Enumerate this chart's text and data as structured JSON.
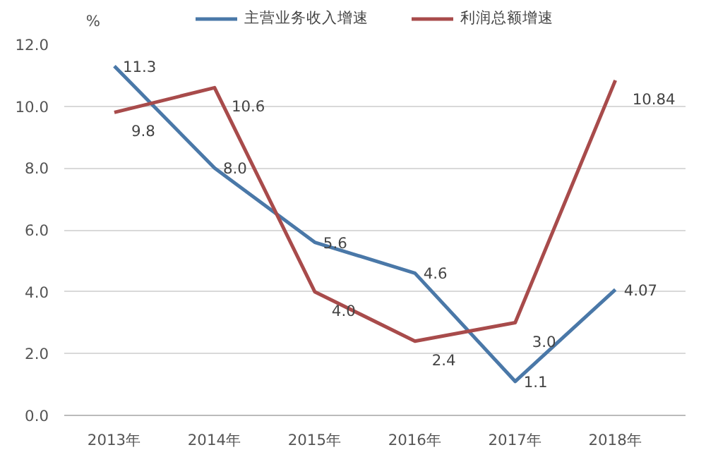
{
  "chart_data": {
    "type": "line",
    "categories": [
      "2013年",
      "2014年",
      "2015年",
      "2016年",
      "2017年",
      "2018年"
    ],
    "series": [
      {
        "name": "主营业务收入增速",
        "color": "#4a78a8",
        "values": [
          11.3,
          8.0,
          5.6,
          4.6,
          1.1,
          4.07
        ],
        "value_labels": [
          "11.3",
          "8.0",
          "5.6",
          "4.6",
          "1.1",
          "4.07"
        ]
      },
      {
        "name": "利润总额增速",
        "color": "#a84b4b",
        "values": [
          9.8,
          10.6,
          4.0,
          2.4,
          3.0,
          10.84
        ],
        "value_labels": [
          "9.8",
          "10.6",
          "4.0",
          "2.4",
          "3.0",
          "10.84"
        ]
      }
    ],
    "ylabel": "%",
    "ylim": [
      0,
      12
    ],
    "yticks": [
      {
        "value": 0,
        "label": "0.0"
      },
      {
        "value": 2,
        "label": "2.0"
      },
      {
        "value": 4,
        "label": "4.0"
      },
      {
        "value": 6,
        "label": "6.0"
      },
      {
        "value": 8,
        "label": "8.0"
      },
      {
        "value": 10,
        "label": "10.0"
      },
      {
        "value": 12,
        "label": "12.0"
      }
    ],
    "grid": "y",
    "legend": "top",
    "marker": "none",
    "line_style": "solid"
  }
}
